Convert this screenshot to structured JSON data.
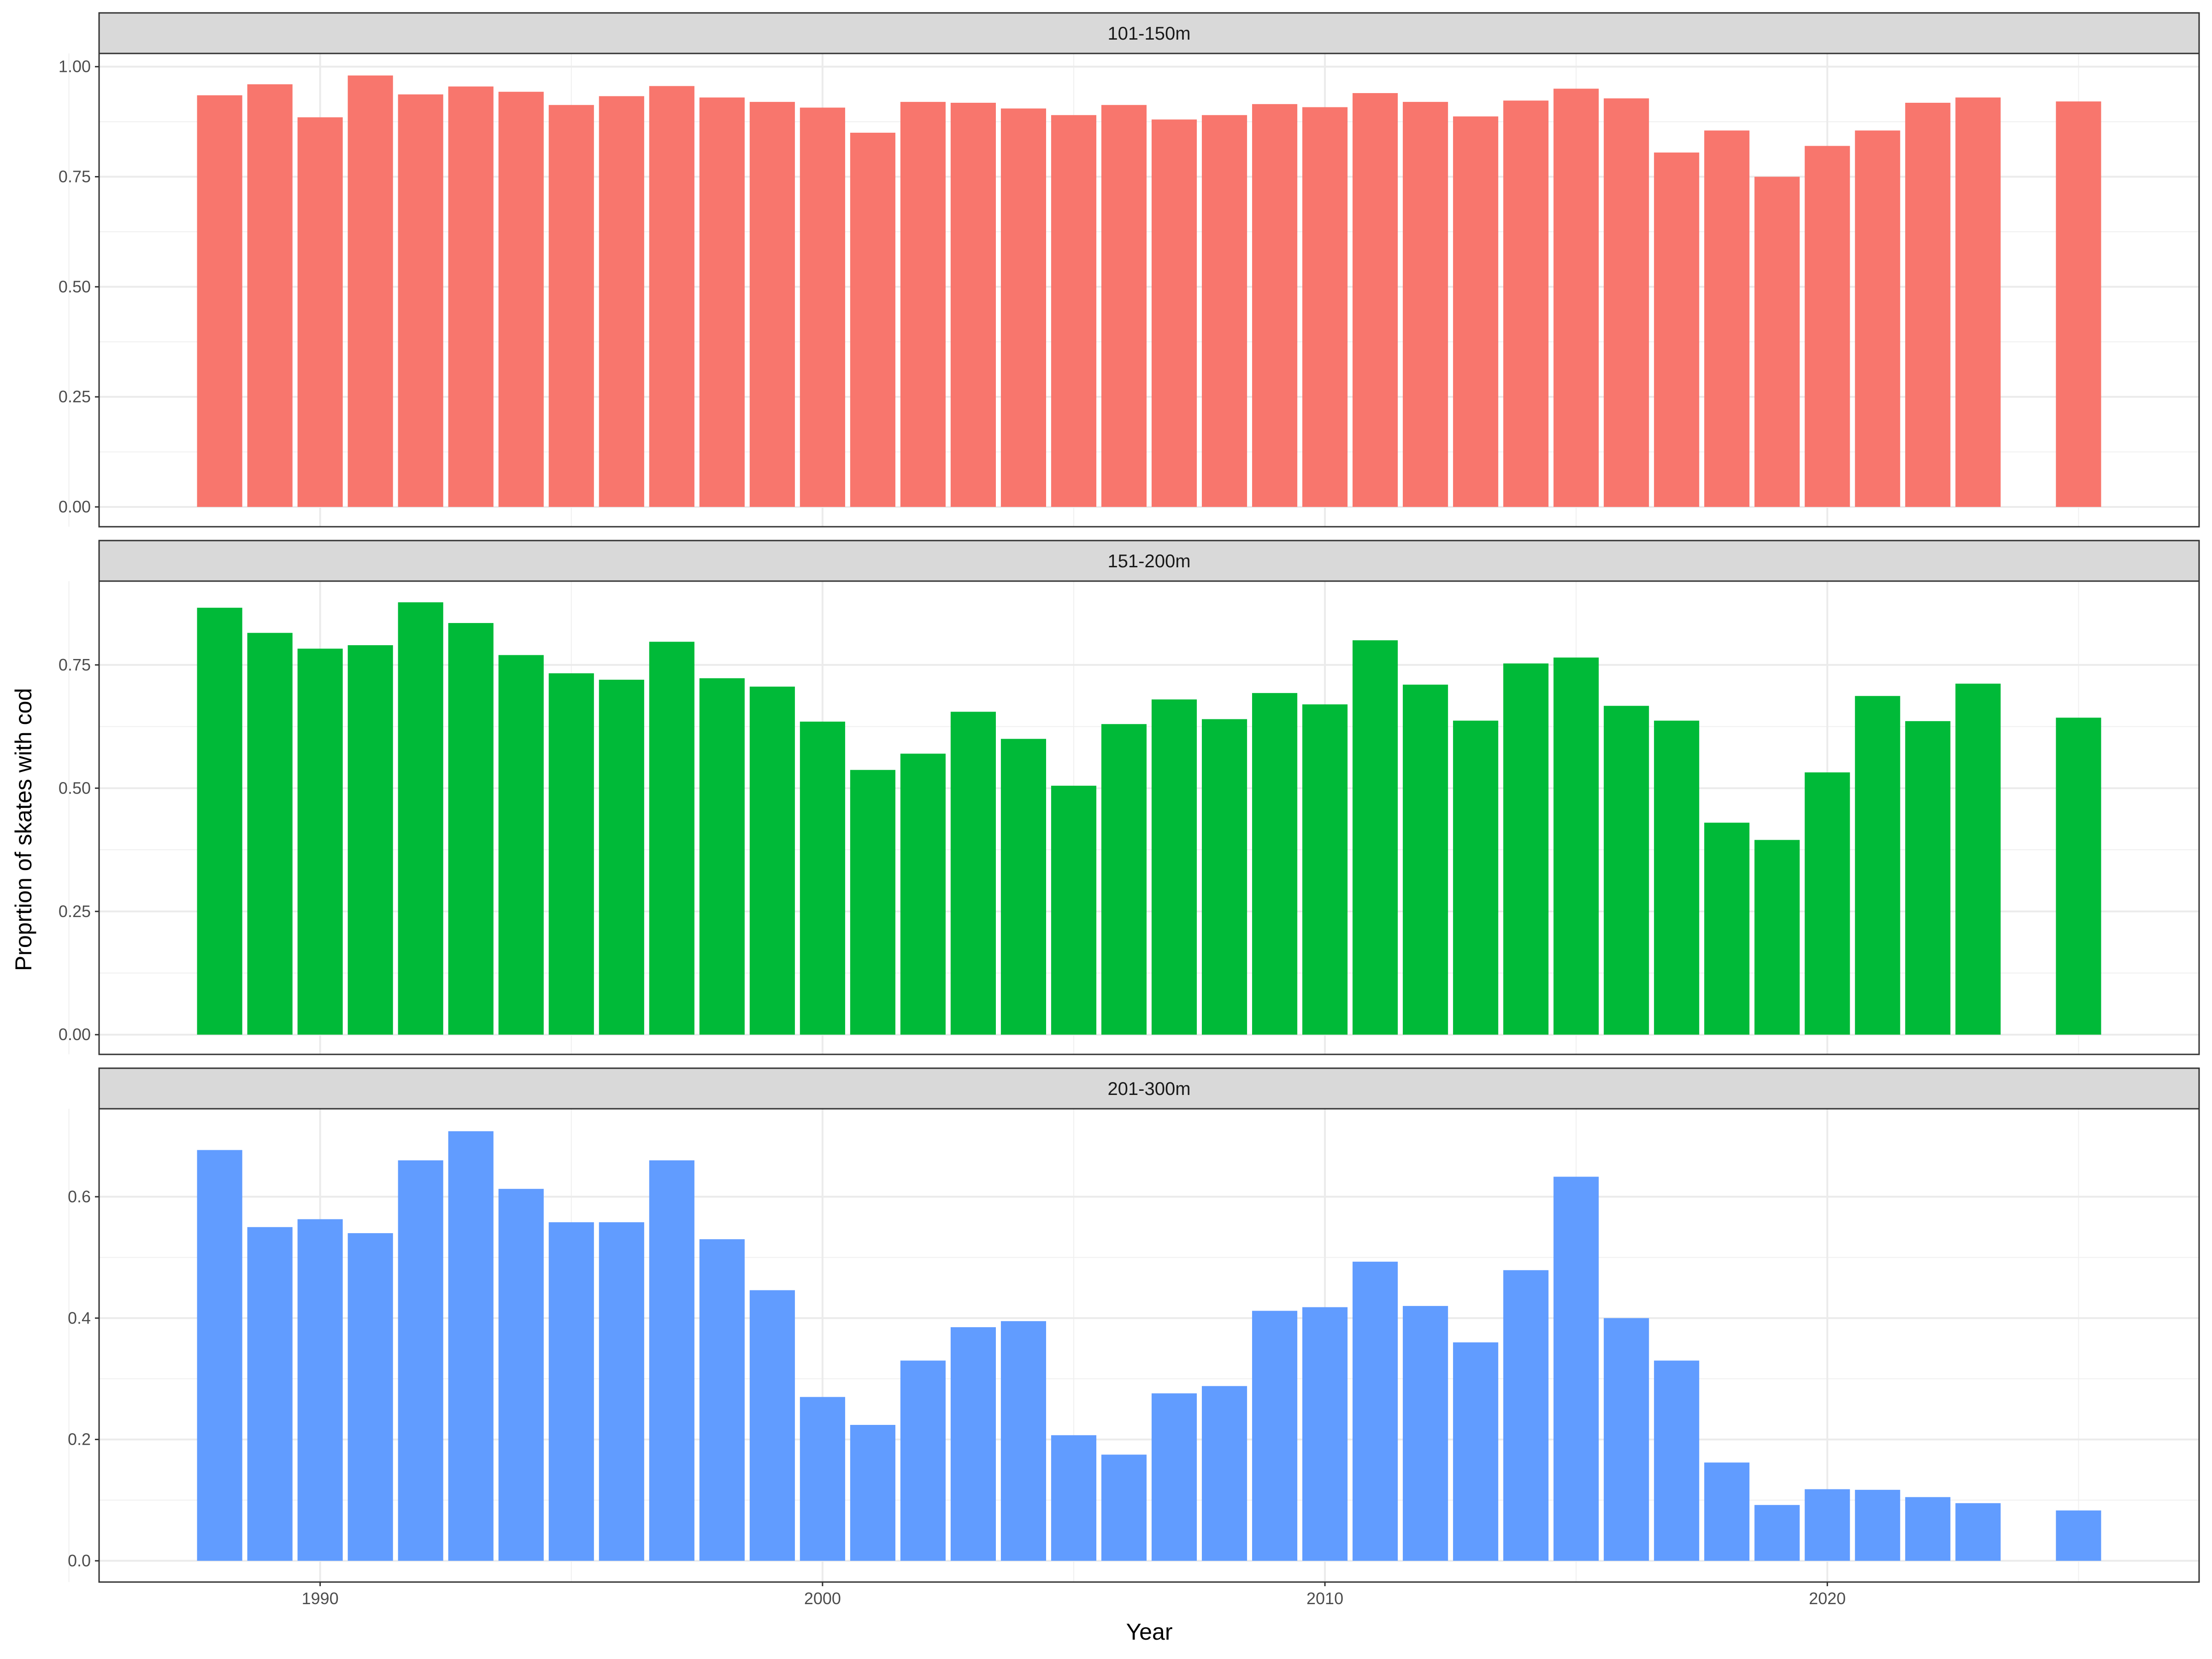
{
  "chart_data": {
    "type": "bar",
    "layout": "facet-rows",
    "xlabel": "Year",
    "ylabel": "Proprtion of skates with cod",
    "xlim": [
      1985.6,
      2027.4
    ],
    "x_ticks": [
      1990,
      2000,
      2010,
      2020
    ],
    "grid": true,
    "legend": "none",
    "panels": [
      {
        "label": "101-150m",
        "color": "#F8766D",
        "ylim": [
          -0.045,
          1.03
        ],
        "y_ticks": [
          0.0,
          0.25,
          0.5,
          0.75,
          1.0
        ],
        "y_tick_labels": [
          "0.00",
          "0.25",
          "0.50",
          "0.75",
          "1.00"
        ],
        "x": [
          1988,
          1989,
          1990,
          1991,
          1992,
          1993,
          1994,
          1995,
          1996,
          1997,
          1998,
          1999,
          2000,
          2001,
          2002,
          2003,
          2004,
          2005,
          2006,
          2007,
          2008,
          2009,
          2010,
          2011,
          2012,
          2013,
          2014,
          2015,
          2016,
          2017,
          2018,
          2019,
          2020,
          2021,
          2022,
          2023,
          2025
        ],
        "values": [
          0.935,
          0.96,
          0.885,
          0.98,
          0.937,
          0.955,
          0.943,
          0.913,
          0.933,
          0.956,
          0.93,
          0.92,
          0.907,
          0.85,
          0.92,
          0.918,
          0.905,
          0.89,
          0.913,
          0.88,
          0.89,
          0.915,
          0.908,
          0.94,
          0.92,
          0.887,
          0.923,
          0.95,
          0.928,
          0.805,
          0.855,
          0.75,
          0.82,
          0.855,
          0.918,
          0.93,
          0.921
        ]
      },
      {
        "label": "151-200m",
        "color": "#00BA38",
        "ylim": [
          -0.04,
          0.92
        ],
        "y_ticks": [
          0.0,
          0.25,
          0.5,
          0.75
        ],
        "y_tick_labels": [
          "0.00",
          "0.25",
          "0.50",
          "0.75"
        ],
        "x": [
          1988,
          1989,
          1990,
          1991,
          1992,
          1993,
          1994,
          1995,
          1996,
          1997,
          1998,
          1999,
          2000,
          2001,
          2002,
          2003,
          2004,
          2005,
          2006,
          2007,
          2008,
          2009,
          2010,
          2011,
          2012,
          2013,
          2014,
          2015,
          2016,
          2017,
          2018,
          2019,
          2020,
          2021,
          2022,
          2023,
          2025
        ],
        "values": [
          0.866,
          0.815,
          0.783,
          0.79,
          0.877,
          0.835,
          0.77,
          0.733,
          0.72,
          0.797,
          0.723,
          0.706,
          0.635,
          0.537,
          0.57,
          0.655,
          0.6,
          0.505,
          0.63,
          0.68,
          0.64,
          0.693,
          0.67,
          0.8,
          0.71,
          0.637,
          0.753,
          0.765,
          0.667,
          0.637,
          0.43,
          0.395,
          0.532,
          0.687,
          0.636,
          0.712,
          0.643
        ]
      },
      {
        "label": "201-300m",
        "color": "#619CFF",
        "ylim": [
          -0.035,
          0.745
        ],
        "y_ticks": [
          0.0,
          0.2,
          0.4,
          0.6
        ],
        "y_tick_labels": [
          "0.0",
          "0.2",
          "0.4",
          "0.6"
        ],
        "x": [
          1988,
          1989,
          1990,
          1991,
          1992,
          1993,
          1994,
          1995,
          1996,
          1997,
          1998,
          1999,
          2000,
          2001,
          2002,
          2003,
          2004,
          2005,
          2006,
          2007,
          2008,
          2009,
          2010,
          2011,
          2012,
          2013,
          2014,
          2015,
          2016,
          2017,
          2018,
          2019,
          2020,
          2021,
          2022,
          2023,
          2025
        ],
        "values": [
          0.677,
          0.55,
          0.563,
          0.54,
          0.66,
          0.708,
          0.613,
          0.558,
          0.558,
          0.66,
          0.53,
          0.446,
          0.27,
          0.224,
          0.33,
          0.385,
          0.395,
          0.207,
          0.175,
          0.276,
          0.288,
          0.412,
          0.418,
          0.493,
          0.42,
          0.36,
          0.479,
          0.633,
          0.4,
          0.33,
          0.162,
          0.092,
          0.118,
          0.117,
          0.105,
          0.095,
          0.083
        ]
      }
    ]
  }
}
